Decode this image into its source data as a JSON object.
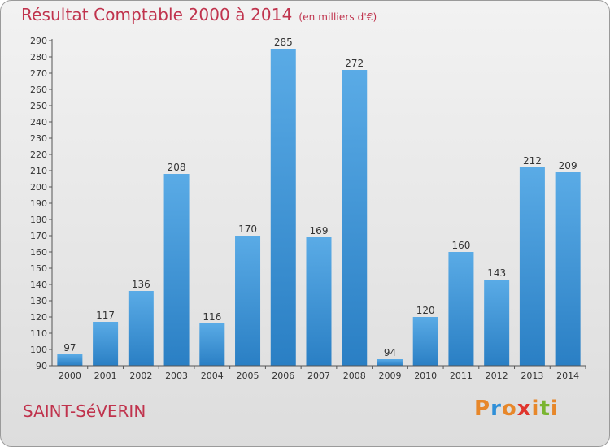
{
  "header": {
    "title": "Résultat Comptable 2000 à 2014",
    "unit": "(en milliers d'€)"
  },
  "footer": {
    "location": "SAINT-SéVERIN",
    "logo_text": "Proxiti"
  },
  "colors": {
    "title": "#c0334d",
    "bar_top": "#5aabe6",
    "bar_bottom": "#2a7fc4",
    "logo": [
      "#e7872a",
      "#2f8fd8",
      "#e7872a",
      "#e0352d",
      "#e7872a",
      "#7ab531",
      "#e7872a"
    ]
  },
  "chart_data": {
    "type": "bar",
    "title": "Résultat Comptable 2000 à 2014",
    "xlabel": "",
    "ylabel": "",
    "ylim": [
      90,
      290
    ],
    "ytick_step": 10,
    "grid": false,
    "categories": [
      "2000",
      "2001",
      "2002",
      "2003",
      "2004",
      "2005",
      "2006",
      "2007",
      "2008",
      "2009",
      "2010",
      "2011",
      "2012",
      "2013",
      "2014"
    ],
    "values": [
      97,
      117,
      136,
      208,
      116,
      170,
      285,
      169,
      272,
      94,
      120,
      160,
      143,
      212,
      209
    ]
  }
}
